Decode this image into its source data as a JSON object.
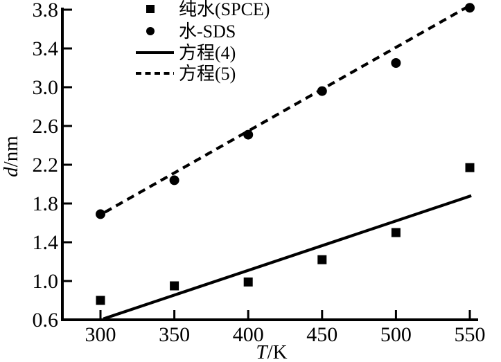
{
  "chart_data": {
    "type": "scatter",
    "title": "",
    "xlabel": "T/K",
    "xlabel_parts": [
      "T",
      "/K"
    ],
    "ylabel": "d/nm",
    "ylabel_parts": [
      "d",
      "/nm"
    ],
    "xlim": [
      274,
      556
    ],
    "ylim": [
      0.6,
      3.81
    ],
    "grid": false,
    "legend_position": "top-left-inside",
    "xticks": [
      300,
      350,
      400,
      450,
      500,
      550
    ],
    "xtick_labels": [
      "300",
      "350",
      "400",
      "450",
      "500",
      "550"
    ],
    "yticks": [
      0.6,
      1.0,
      1.4,
      1.8,
      2.2,
      2.6,
      3.0,
      3.4,
      3.8
    ],
    "ytick_labels": [
      "0.6",
      "1.0",
      "1.4",
      "1.8",
      "2.2",
      "2.6",
      "3.0",
      "3.4",
      "3.8"
    ],
    "series": [
      {
        "id": "pure-water-spce",
        "name": "纯水(SPCE)",
        "kind": "scatter",
        "marker": "square",
        "x": [
          300,
          350,
          400,
          450,
          500,
          550
        ],
        "y": [
          0.8,
          0.95,
          0.99,
          1.22,
          1.5,
          2.17
        ]
      },
      {
        "id": "water-sds",
        "name": "水-SDS",
        "kind": "scatter",
        "marker": "circle",
        "x": [
          300,
          350,
          400,
          450,
          500,
          550
        ],
        "y": [
          1.69,
          2.04,
          2.51,
          2.96,
          3.25,
          3.82
        ]
      },
      {
        "id": "equation-4",
        "name": "方程(4)",
        "kind": "line",
        "dash": false,
        "x": [
          302,
          551
        ],
        "y": [
          0.61,
          1.88
        ]
      },
      {
        "id": "equation-5",
        "name": "方程(5)",
        "kind": "line",
        "dash": true,
        "x": [
          303,
          552
        ],
        "y": [
          1.71,
          3.86
        ]
      }
    ],
    "colors": {
      "foreground": "#000000",
      "background": "#ffffff"
    }
  }
}
